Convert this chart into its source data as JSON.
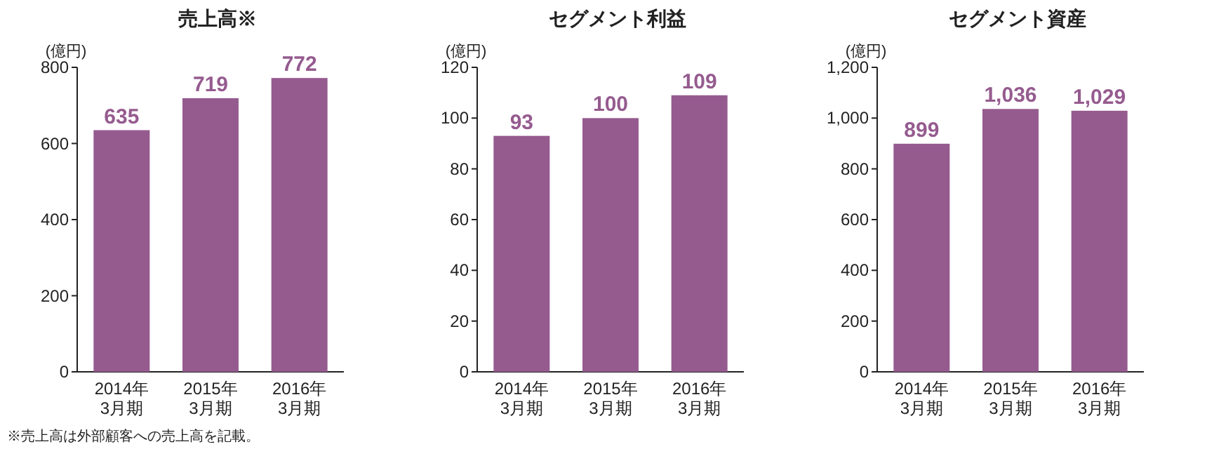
{
  "chart_data": [
    {
      "type": "bar",
      "title": "売上高※",
      "ylabel": "(億円)",
      "categories": [
        "2014年\n3月期",
        "2015年\n3月期",
        "2016年\n3月期"
      ],
      "values": [
        635,
        719,
        772
      ],
      "color": "#955b8f",
      "ylim": [
        0,
        800
      ],
      "yticks": [
        0,
        200,
        400,
        600,
        800
      ],
      "data_labels": true,
      "grid": false,
      "annotations": [
        "※売上高は外部顧客への売上高を記載。"
      ]
    },
    {
      "type": "bar",
      "title": "セグメント利益",
      "ylabel": "(億円)",
      "categories": [
        "2014年\n3月期",
        "2015年\n3月期",
        "2016年\n3月期"
      ],
      "values": [
        93,
        100,
        109
      ],
      "color": "#955b8f",
      "ylim": [
        0,
        120
      ],
      "yticks": [
        0,
        20,
        40,
        60,
        80,
        100,
        120
      ],
      "data_labels": true,
      "grid": false
    },
    {
      "type": "bar",
      "title": "セグメント資産",
      "ylabel": "(億円)",
      "categories": [
        "2014年\n3月期",
        "2015年\n3月期",
        "2016年\n3月期"
      ],
      "values": [
        899,
        1036,
        1029
      ],
      "value_labels": [
        "899",
        "1,036",
        "1,029"
      ],
      "color": "#955b8f",
      "ylim": [
        0,
        1200
      ],
      "yticks": [
        0,
        200,
        400,
        600,
        800,
        {
          "value": 1000,
          "label": "1,000"
        },
        {
          "value": 1200,
          "label": "1,200"
        }
      ],
      "grid": false
    }
  ]
}
